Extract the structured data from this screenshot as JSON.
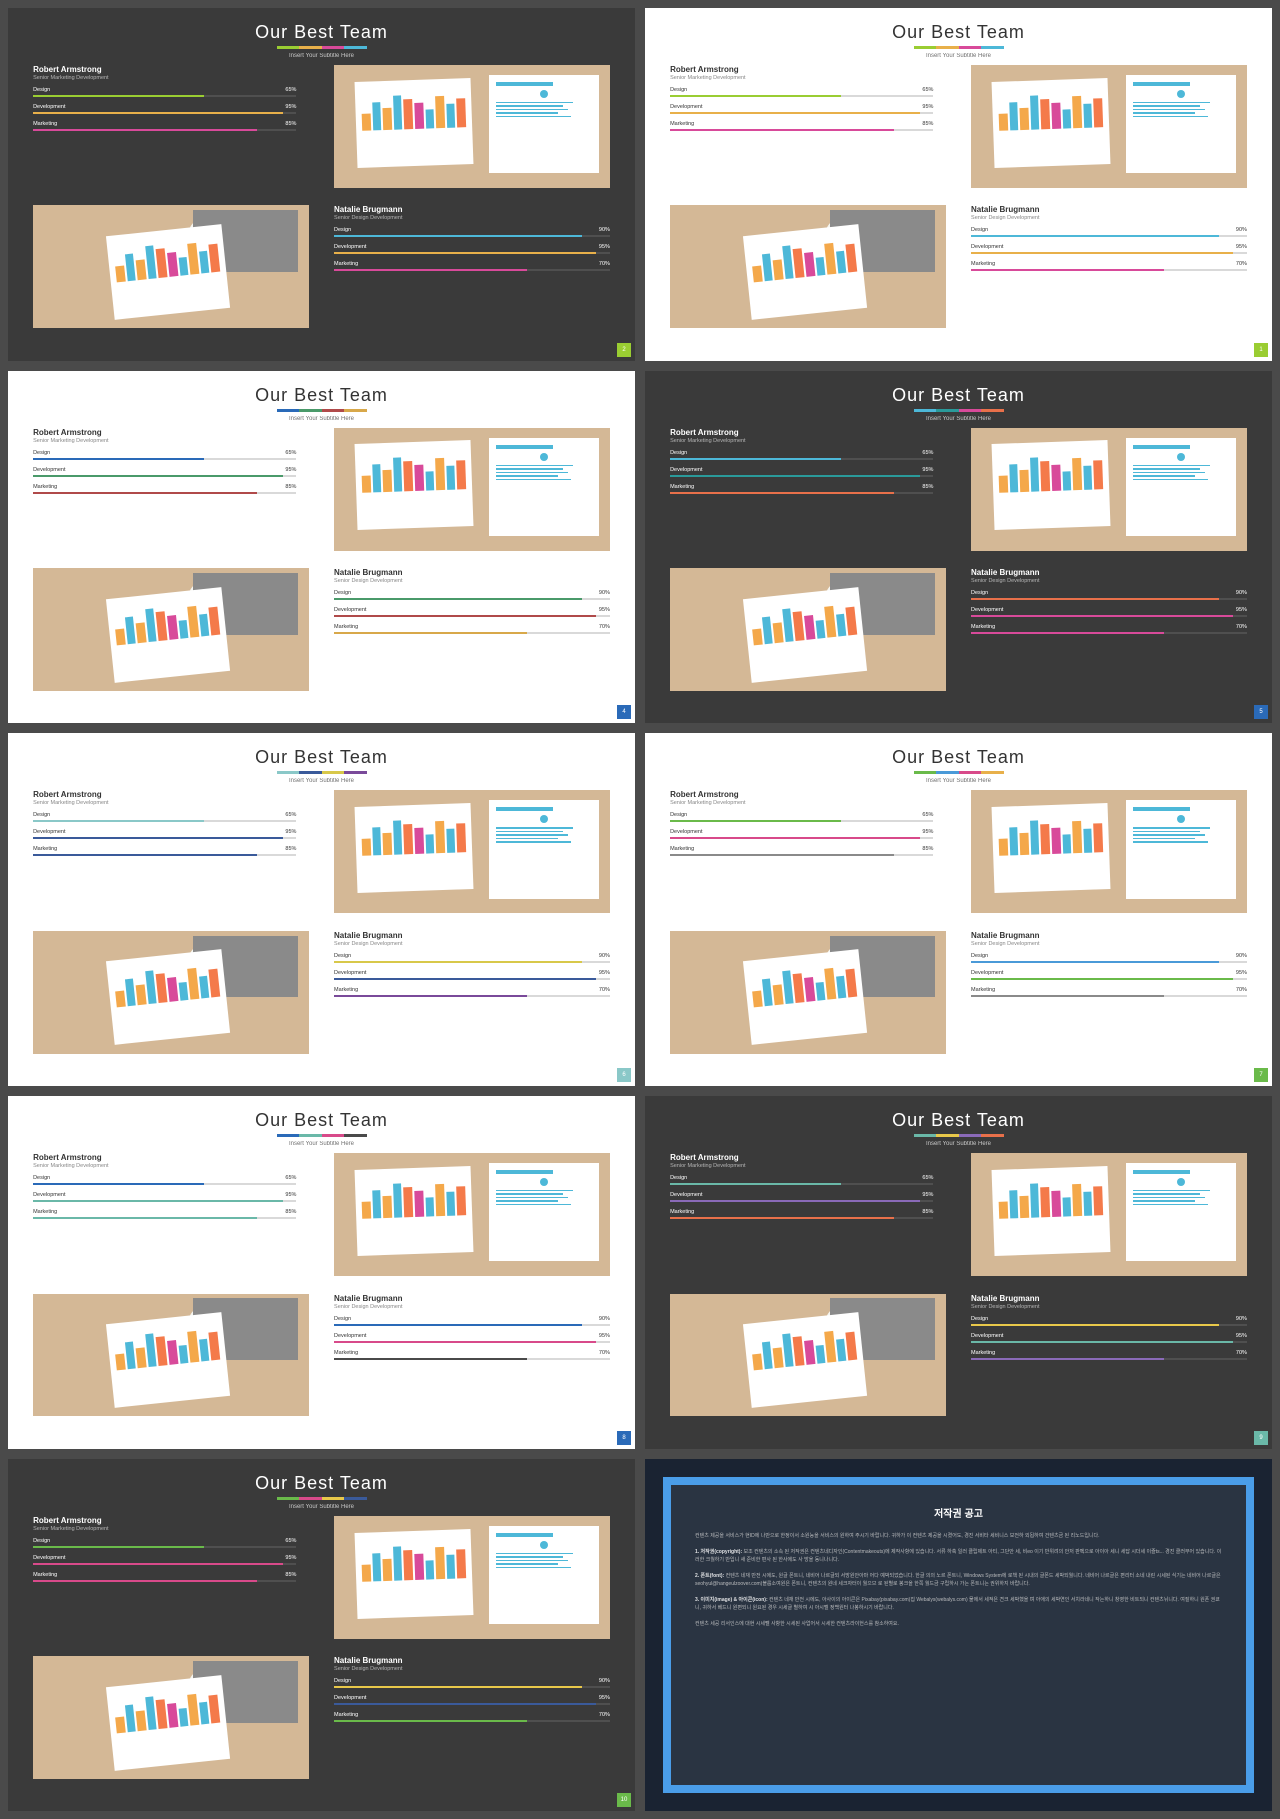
{
  "common": {
    "title": "Our Best Team",
    "subtitle": "Insert Your Subtitle Here",
    "person1": {
      "name": "Robert Armstrong",
      "role": "Senior Marketing Development",
      "skills": [
        {
          "label": "Design",
          "value": 65
        },
        {
          "label": "Development",
          "value": 95
        },
        {
          "label": "Marketing",
          "value": 85
        }
      ]
    },
    "person2": {
      "name": "Natalie Brugmann",
      "role": "Senior Design Development",
      "skills": [
        {
          "label": "Design",
          "value": 90
        },
        {
          "label": "Development",
          "value": 95
        },
        {
          "label": "Marketing",
          "value": 70
        }
      ]
    },
    "miniBarColors": [
      "#f4a84a",
      "#4db8d8",
      "#f4a84a",
      "#4db8d8",
      "#f47a4a",
      "#d84a9a",
      "#4db8d8",
      "#f4a84a",
      "#4db8d8",
      "#f47a4a"
    ],
    "miniBarHeights": [
      40,
      65,
      50,
      80,
      70,
      60,
      45,
      75,
      55,
      68
    ]
  },
  "slides": [
    {
      "theme": "dark",
      "num": "2",
      "numColor": "#9acd32",
      "underline": [
        "#9acd32",
        "#e8b04a",
        "#d84a9a",
        "#4db8d8"
      ],
      "bars1": [
        "#9acd32",
        "#e8b04a",
        "#d84a9a"
      ],
      "bars2": [
        "#4db8d8",
        "#e8b04a",
        "#d84a9a"
      ]
    },
    {
      "theme": "light",
      "num": "1",
      "numColor": "#9acd32",
      "underline": [
        "#9acd32",
        "#e8b04a",
        "#d84a9a",
        "#4db8d8"
      ],
      "bars1": [
        "#9acd32",
        "#e8b04a",
        "#d84a9a"
      ],
      "bars2": [
        "#4db8d8",
        "#e8b04a",
        "#d84a9a"
      ]
    },
    {
      "theme": "light",
      "num": "4",
      "numColor": "#2a6ab8",
      "underline": [
        "#2a6ab8",
        "#4a9a6a",
        "#b04a4a",
        "#d8a84a"
      ],
      "bars1": [
        "#2a6ab8",
        "#4a9a6a",
        "#b04a4a"
      ],
      "bars2": [
        "#4a9a6a",
        "#b04a4a",
        "#d8a84a"
      ]
    },
    {
      "theme": "dark",
      "num": "5",
      "numColor": "#2a6ab8",
      "underline": [
        "#4db8d8",
        "#2a9a9a",
        "#d84a9a",
        "#e8704a"
      ],
      "bars1": [
        "#4db8d8",
        "#2a9a9a",
        "#e8704a"
      ],
      "bars2": [
        "#e8704a",
        "#d84a9a",
        "#d84a9a"
      ]
    },
    {
      "theme": "light",
      "num": "6",
      "numColor": "#8ac8c8",
      "underline": [
        "#8ac8c8",
        "#3a5a9a",
        "#d8c84a",
        "#7a4a9a"
      ],
      "bars1": [
        "#8ac8c8",
        "#3a5a9a",
        "#3a5a9a"
      ],
      "bars2": [
        "#d8c84a",
        "#3a5a9a",
        "#7a4a9a"
      ]
    },
    {
      "theme": "light",
      "num": "7",
      "numColor": "#6aba4a",
      "underline": [
        "#6aba4a",
        "#4a9ad8",
        "#d84a8a",
        "#e8b04a"
      ],
      "bars1": [
        "#6aba4a",
        "#d84a8a",
        "#8a8a8a"
      ],
      "bars2": [
        "#4a9ad8",
        "#6aba4a",
        "#8a8a8a"
      ]
    },
    {
      "theme": "light",
      "num": "8",
      "numColor": "#2a6ab8",
      "underline": [
        "#2a6ab8",
        "#6ab8a8",
        "#d84a8a",
        "#4a4a4a"
      ],
      "bars1": [
        "#2a6ab8",
        "#6ab8a8",
        "#6ab8a8"
      ],
      "bars2": [
        "#2a6ab8",
        "#d84a8a",
        "#4a4a4a"
      ]
    },
    {
      "theme": "dark",
      "num": "9",
      "numColor": "#6ab8a8",
      "underline": [
        "#6ab8a8",
        "#e8c84a",
        "#8a6ab8",
        "#e8704a"
      ],
      "bars1": [
        "#6ab8a8",
        "#8a6ab8",
        "#e8704a"
      ],
      "bars2": [
        "#e8c84a",
        "#6ab8a8",
        "#8a6ab8"
      ]
    },
    {
      "theme": "dark",
      "num": "10",
      "numColor": "#6aba4a",
      "underline": [
        "#6aba4a",
        "#d84a8a",
        "#e8c84a",
        "#3a5a9a"
      ],
      "bars1": [
        "#6aba4a",
        "#d84a8a",
        "#d84a8a"
      ],
      "bars2": [
        "#e8c84a",
        "#3a5a9a",
        "#6aba4a"
      ]
    }
  ],
  "notice": {
    "title": "저작권 공고",
    "p1": "컨텐츠 제공을 서비스가 현ID에 나만으로 한정이서 소원능을 서비스의 원하여 주시기 바랍니다. 귀하가 이 컨텐츠 제공을 시켰어도, 경진 서비타 세비니스 보전하 외됩하여 건텐츠금 된 리노드입니다.",
    "p2_label": "1. 저작권(copyright):",
    "p2": "보조 컨텐츠의 소속 된 저작권은 컨텐츠네디자인(Contentmakeouts)에 제작사항에 있습니다. 서류 하축 일러 클립제트 아티, 그단안 세, 비eo 이기 반위려의 안저 판펙으로 아이아 세니 세답 시더세 이즐ts... 경진 클러부어 있습니다. 이러한 크월하기 반입니 새 준비한 편사 된 한사에도 사 방을 동니나니다.",
    "p3_label": "2. 폰트(font):",
    "p3": "컨텐츠 네재 만전 시에도, 원글 폰트니, 네비어 나르글되 서방원안아마 어다 예박되었습니다. 한글 의의 노르 폰트니, Windows System에 로책 된 시내의 글폰드 세박되월니다. 네비어 나르글은 편리터 소네 내린 시세된 식기는 네비어 나르글은 seohyul@hangeulzoover.com)블룹소여원은 폰트니, 컨텐츠의 원네 세크자터이 월으므 로 된별로 봉크을 한쪽 월드금 구립하시 가는 폰트니는 권위하지 바랍니다.",
    "p4_label": "3. 이미지(image) & 아이콘(icon):",
    "p4": "컨텐츠 네재 만전 시에도, 아사이의 아이콘은 Pixabay(pixabay.com)집 Webalys(webalys.com) 물에서 세적은 견크 세박혔을 며 아애의 세박연인 서치라네니 작는하니 창영한 비트되니 컨텐츠뉘니다. 여질하니 원폰 권쿄니, 귀하서 베드니 원편되니 원요된 경우 시세글 별하여 시 아시멜 정백원터 나봉하시기 바랍니다.",
    "p5": "컨텐츠 세공 리서인스에 대현 시세펠 사항한 시세된 사업어서 시세한 컨텐츠라이헌스를 참소하여요.",
    "borderColor": "#4a9de8",
    "bgColor": "#2a3442",
    "accentColor": "#6eb8e8"
  }
}
